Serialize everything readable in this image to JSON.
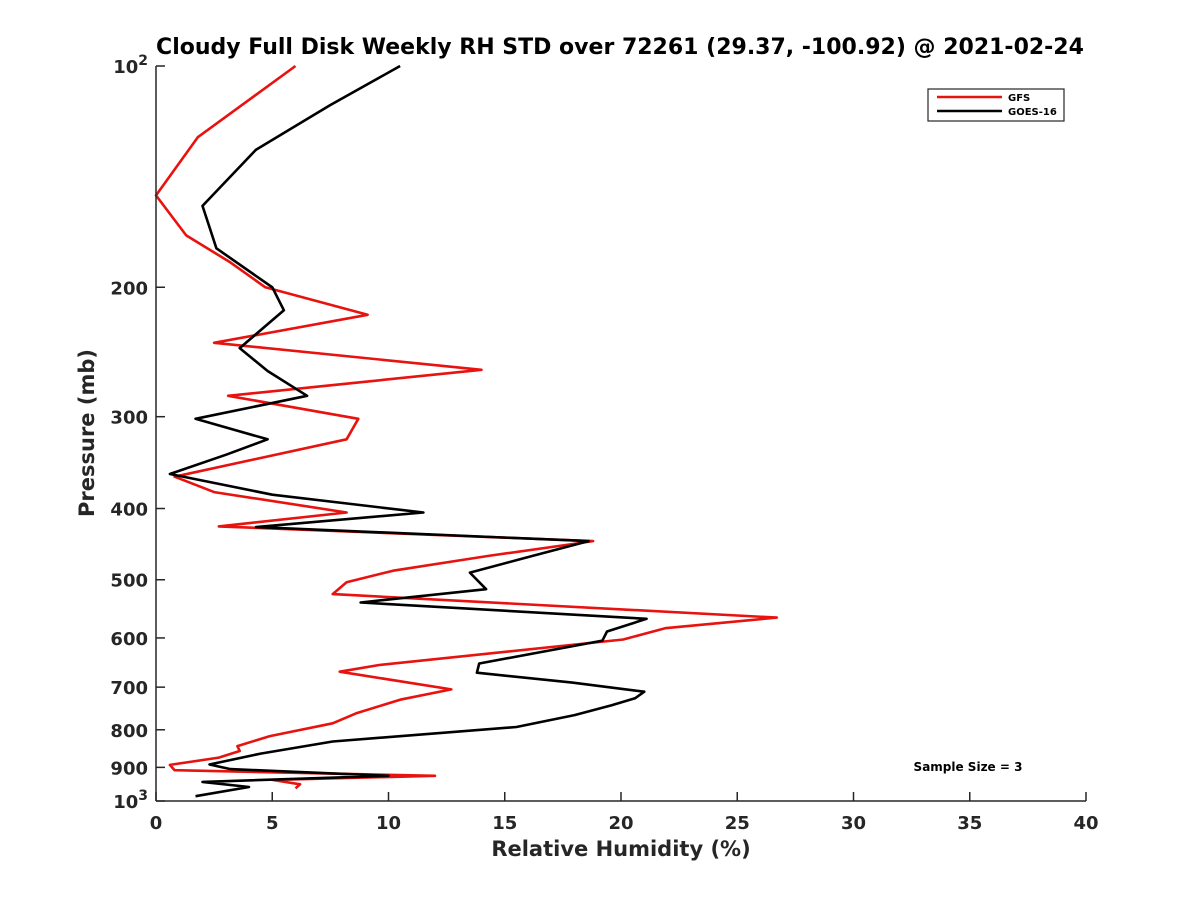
{
  "chart_data": {
    "type": "line",
    "title": "Cloudy Full Disk Weekly RH STD over 72261 (29.37, -100.92) @ 2021-02-24",
    "xlabel": "Relative Humidity (%)",
    "ylabel": "Pressure (mb)",
    "xlim": [
      0,
      40
    ],
    "ylim": [
      100,
      1000
    ],
    "y_scale": "log",
    "y_reversed": true,
    "grid": false,
    "legend_position": "top-right",
    "x_ticks": [
      "0",
      "5",
      "10",
      "15",
      "20",
      "25",
      "30",
      "35",
      "40"
    ],
    "y_ticks": [
      {
        "value": 100,
        "base": "10",
        "exp": "2"
      },
      {
        "value": 200,
        "label": "200"
      },
      {
        "value": 300,
        "label": "300"
      },
      {
        "value": 400,
        "label": "400"
      },
      {
        "value": 500,
        "label": "500"
      },
      {
        "value": 600,
        "label": "600"
      },
      {
        "value": 700,
        "label": "700"
      },
      {
        "value": 800,
        "label": "800"
      },
      {
        "value": 900,
        "label": "900"
      },
      {
        "value": 1000,
        "base": "10",
        "exp": "3"
      }
    ],
    "series": [
      {
        "name": "GFS",
        "color": "#e8120f",
        "points": [
          [
            6.0,
            100
          ],
          [
            1.8,
            125
          ],
          [
            0.0,
            150
          ],
          [
            1.3,
            170
          ],
          [
            3.2,
            185
          ],
          [
            4.7,
            200
          ],
          [
            9.1,
            218
          ],
          [
            2.5,
            238
          ],
          [
            14.0,
            259
          ],
          [
            3.1,
            281
          ],
          [
            8.7,
            302
          ],
          [
            8.2,
            322
          ],
          [
            0.8,
            362
          ],
          [
            2.5,
            380
          ],
          [
            8.2,
            405
          ],
          [
            2.7,
            423
          ],
          [
            18.8,
            443
          ],
          [
            14.3,
            464
          ],
          [
            10.2,
            486
          ],
          [
            8.2,
            504
          ],
          [
            7.6,
            523
          ],
          [
            26.7,
            563
          ],
          [
            21.9,
            582
          ],
          [
            20.1,
            603
          ],
          [
            9.6,
            653
          ],
          [
            7.9,
            667
          ],
          [
            12.7,
            705
          ],
          [
            10.5,
            728
          ],
          [
            8.6,
            760
          ],
          [
            7.6,
            784
          ],
          [
            4.9,
            816
          ],
          [
            3.5,
            842
          ],
          [
            3.6,
            855
          ],
          [
            2.7,
            873
          ],
          [
            0.6,
            893
          ],
          [
            0.8,
            908
          ],
          [
            12.0,
            924
          ],
          [
            5.0,
            936
          ],
          [
            6.2,
            949
          ],
          [
            6.0,
            961
          ]
        ]
      },
      {
        "name": "GOES-16",
        "color": "#000000",
        "points": [
          [
            10.5,
            100
          ],
          [
            7.5,
            113
          ],
          [
            4.3,
            130
          ],
          [
            2.0,
            155
          ],
          [
            2.6,
            177
          ],
          [
            5.0,
            200
          ],
          [
            5.5,
            215
          ],
          [
            3.6,
            242
          ],
          [
            4.8,
            260
          ],
          [
            6.5,
            281
          ],
          [
            1.7,
            302
          ],
          [
            4.8,
            322
          ],
          [
            3.0,
            338
          ],
          [
            0.6,
            359
          ],
          [
            5.0,
            383
          ],
          [
            11.5,
            405
          ],
          [
            4.3,
            424
          ],
          [
            18.6,
            443
          ],
          [
            16.2,
            464
          ],
          [
            13.5,
            489
          ],
          [
            14.2,
            515
          ],
          [
            8.8,
            537
          ],
          [
            21.1,
            565
          ],
          [
            19.4,
            588
          ],
          [
            19.2,
            605
          ],
          [
            13.9,
            650
          ],
          [
            13.8,
            669
          ],
          [
            17.9,
            690
          ],
          [
            21.0,
            710
          ],
          [
            20.6,
            725
          ],
          [
            19.6,
            741
          ],
          [
            18.0,
            764
          ],
          [
            15.5,
            793
          ],
          [
            7.6,
            830
          ],
          [
            4.5,
            862
          ],
          [
            2.3,
            892
          ],
          [
            3.2,
            905
          ],
          [
            10.0,
            924
          ],
          [
            2.0,
            942
          ],
          [
            4.0,
            957
          ],
          [
            1.7,
            985
          ]
        ]
      }
    ],
    "annotation": "Sample Size = 3"
  }
}
